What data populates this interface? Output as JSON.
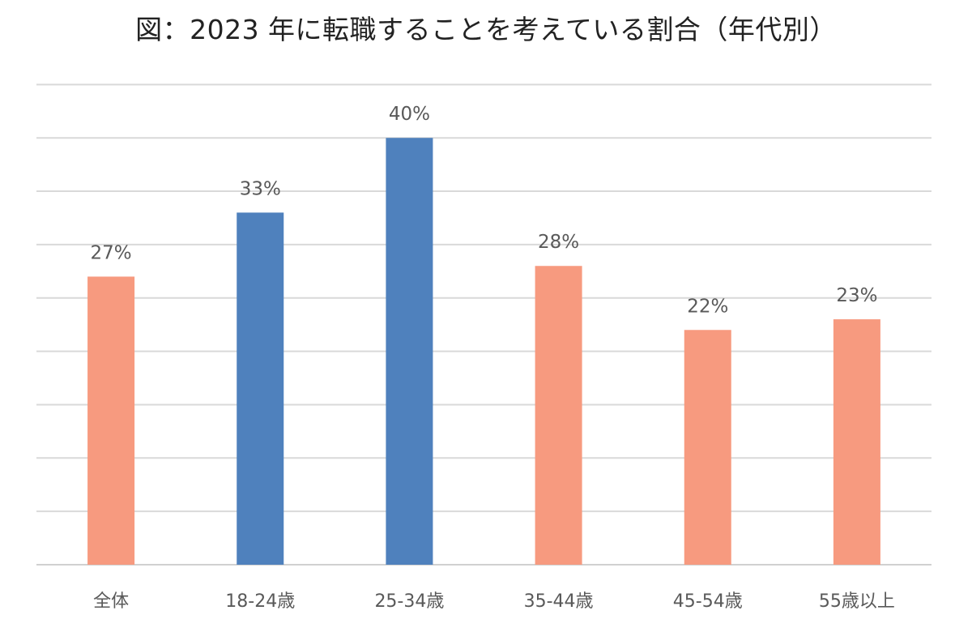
{
  "chart_data": {
    "type": "bar",
    "title": "図：2023 年に転職することを考えている割合（年代別）",
    "xlabel": "",
    "ylabel": "",
    "categories": [
      "全体",
      "18-24歳",
      "25-34歳",
      "35-44歳",
      "45-54歳",
      "55歳以上"
    ],
    "values": [
      27,
      33,
      40,
      28,
      22,
      23
    ],
    "data_labels": [
      "27%",
      "33%",
      "40%",
      "28%",
      "22%",
      "23%"
    ],
    "bar_colors": [
      "#f79a7f",
      "#4f81bd",
      "#4f81bd",
      "#f79a7f",
      "#f79a7f",
      "#f79a7f"
    ],
    "ylim": [
      0,
      45
    ],
    "grid": true,
    "gridline_count": 9,
    "legend": "none"
  }
}
